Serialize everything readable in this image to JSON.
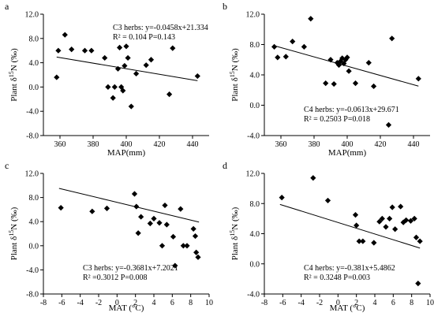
{
  "chart_data": [
    {
      "panel": "a",
      "type": "scatter",
      "xlabel": "MAP(mm)",
      "ylabel_prefix": "Plant δ",
      "ylabel_sup": "15",
      "ylabel_suffix": "N (‰)",
      "xlim": [
        350,
        450
      ],
      "ylim": [
        -8.0,
        12.0
      ],
      "x_ticks": [
        360,
        380,
        400,
        420,
        440
      ],
      "y_ticks": [
        -8.0,
        -4.0,
        0.0,
        4.0,
        8.0,
        12.0
      ],
      "y_tick_labels": [
        "-8.0",
        "-4.0",
        "0.0",
        "4.0",
        "8.0",
        "12.0"
      ],
      "annotation": {
        "line1": "C3 herbs:  y=-0.0458x+21.334",
        "line2": "R² = 0.104  P=0.143",
        "position": "top-right"
      },
      "fit": {
        "slope": -0.0458,
        "intercept": 21.334,
        "x_range": [
          358,
          443
        ]
      },
      "points": [
        [
          358,
          1.6
        ],
        [
          359,
          6.0
        ],
        [
          363,
          8.6
        ],
        [
          367,
          6.2
        ],
        [
          375,
          6.0
        ],
        [
          379,
          6.0
        ],
        [
          387,
          4.8
        ],
        [
          389,
          0.0
        ],
        [
          392,
          -1.8
        ],
        [
          393,
          0.0
        ],
        [
          395,
          3.0
        ],
        [
          396,
          6.5
        ],
        [
          397,
          0.0
        ],
        [
          398,
          -0.6
        ],
        [
          399,
          3.5
        ],
        [
          400,
          6.7
        ],
        [
          401,
          4.8
        ],
        [
          403,
          -3.2
        ],
        [
          406,
          2.2
        ],
        [
          412,
          3.6
        ],
        [
          415,
          4.5
        ],
        [
          426,
          -1.2
        ],
        [
          428,
          6.4
        ],
        [
          443,
          1.8
        ]
      ]
    },
    {
      "panel": "b",
      "type": "scatter",
      "xlabel": "MAP(mm)",
      "ylabel_prefix": "Plant δ",
      "ylabel_sup": "15",
      "ylabel_suffix": "N (‰)",
      "xlim": [
        350,
        450
      ],
      "ylim": [
        -4.0,
        12.0
      ],
      "x_ticks": [
        360,
        380,
        400,
        420,
        440
      ],
      "y_ticks": [
        -4.0,
        0.0,
        4.0,
        8.0,
        12.0
      ],
      "y_tick_labels": [
        "-4.0",
        "0.0",
        "4.0",
        "8.0",
        "12.0"
      ],
      "annotation": {
        "line1": "C4 herbs: y=-0.0613x+29.671",
        "line2": "R² = 0.2503  P=0.018",
        "position": "bottom-center"
      },
      "fit": {
        "slope": -0.0613,
        "intercept": 29.671,
        "x_range": [
          356,
          443
        ]
      },
      "points": [
        [
          356,
          7.7
        ],
        [
          358,
          6.3
        ],
        [
          363,
          6.4
        ],
        [
          367,
          8.4
        ],
        [
          374,
          7.7
        ],
        [
          378,
          11.4
        ],
        [
          387,
          2.9
        ],
        [
          390,
          6.0
        ],
        [
          392,
          2.8
        ],
        [
          394,
          5.6
        ],
        [
          395,
          5.3
        ],
        [
          396,
          5.8
        ],
        [
          397,
          6.2
        ],
        [
          398,
          5.5
        ],
        [
          399,
          6.0
        ],
        [
          400,
          6.3
        ],
        [
          401,
          4.5
        ],
        [
          405,
          2.9
        ],
        [
          413,
          5.6
        ],
        [
          416,
          2.5
        ],
        [
          425,
          -2.6
        ],
        [
          427,
          8.8
        ],
        [
          443,
          3.5
        ]
      ]
    },
    {
      "panel": "c",
      "type": "scatter",
      "xlabel": "MAT (°C)",
      "ylabel_prefix": "Plant δ",
      "ylabel_sup": "15",
      "ylabel_suffix": "N (‰)",
      "xlim": [
        -8,
        10
      ],
      "ylim": [
        -8.0,
        12.0
      ],
      "x_ticks": [
        -8,
        -6,
        -4,
        -2,
        0,
        2,
        4,
        6,
        8,
        10
      ],
      "y_ticks": [
        -8.0,
        -4.0,
        0.0,
        4.0,
        8.0,
        12.0
      ],
      "y_tick_labels": [
        "-8.0",
        "-4.0",
        "0.0",
        "4.0",
        "8.0",
        "12.0"
      ],
      "annotation": {
        "line1": "C3 herbs: y=-0.3681x+7.2021",
        "line2": "R² =0.3012  P=0.008",
        "position": "bottom-center"
      },
      "fit": {
        "slope": -0.3681,
        "intercept": 7.2021,
        "x_range": [
          -6.3,
          8.9
        ]
      },
      "points": [
        [
          -6.1,
          6.3
        ],
        [
          -2.7,
          5.7
        ],
        [
          -1.1,
          6.2
        ],
        [
          1.9,
          8.6
        ],
        [
          2.1,
          6.5
        ],
        [
          2.3,
          2.1
        ],
        [
          2.6,
          4.8
        ],
        [
          3.6,
          3.7
        ],
        [
          4.0,
          4.5
        ],
        [
          4.6,
          3.8
        ],
        [
          4.9,
          0.0
        ],
        [
          5.2,
          6.7
        ],
        [
          5.4,
          3.5
        ],
        [
          6.1,
          1.5
        ],
        [
          6.3,
          -3.3
        ],
        [
          6.9,
          6.1
        ],
        [
          7.2,
          0.0
        ],
        [
          7.6,
          0.0
        ],
        [
          8.3,
          2.8
        ],
        [
          8.5,
          1.6
        ],
        [
          8.6,
          -1.1
        ],
        [
          8.8,
          -1.9
        ]
      ]
    },
    {
      "panel": "d",
      "type": "scatter",
      "xlabel": "MAT (°C)",
      "ylabel_prefix": "Plant δ",
      "ylabel_sup": "15",
      "ylabel_suffix": "N (‰)",
      "xlim": [
        -8,
        10
      ],
      "ylim": [
        -4.0,
        12.0
      ],
      "x_ticks": [
        -8,
        -6,
        -4,
        -2,
        0,
        2,
        4,
        6,
        8,
        10
      ],
      "y_ticks": [
        -4.0,
        0.0,
        4.0,
        8.0,
        12.0
      ],
      "y_tick_labels": [
        "-4.0",
        "0.0",
        "4.0",
        "8.0",
        "12.0"
      ],
      "annotation": {
        "line1": "C4 herbs: y=-0.381x+5.4862",
        "line2": "R² = 0.3248  P=0.003",
        "position": "bottom-center"
      },
      "fit": {
        "slope": -0.381,
        "intercept": 5.4862,
        "x_range": [
          -6.3,
          8.9
        ]
      },
      "points": [
        [
          -6.1,
          8.8
        ],
        [
          -2.7,
          11.4
        ],
        [
          -1.1,
          8.4
        ],
        [
          1.9,
          6.5
        ],
        [
          2.0,
          5.1
        ],
        [
          2.3,
          3.0
        ],
        [
          2.7,
          3.0
        ],
        [
          3.9,
          2.8
        ],
        [
          4.5,
          5.6
        ],
        [
          4.8,
          6.0
        ],
        [
          5.2,
          4.9
        ],
        [
          5.6,
          6.0
        ],
        [
          5.9,
          7.5
        ],
        [
          6.2,
          4.6
        ],
        [
          6.8,
          7.6
        ],
        [
          7.1,
          5.5
        ],
        [
          7.4,
          5.8
        ],
        [
          7.9,
          5.7
        ],
        [
          8.3,
          6.0
        ],
        [
          8.5,
          3.5
        ],
        [
          8.7,
          -2.6
        ],
        [
          8.9,
          3.0
        ]
      ]
    }
  ]
}
